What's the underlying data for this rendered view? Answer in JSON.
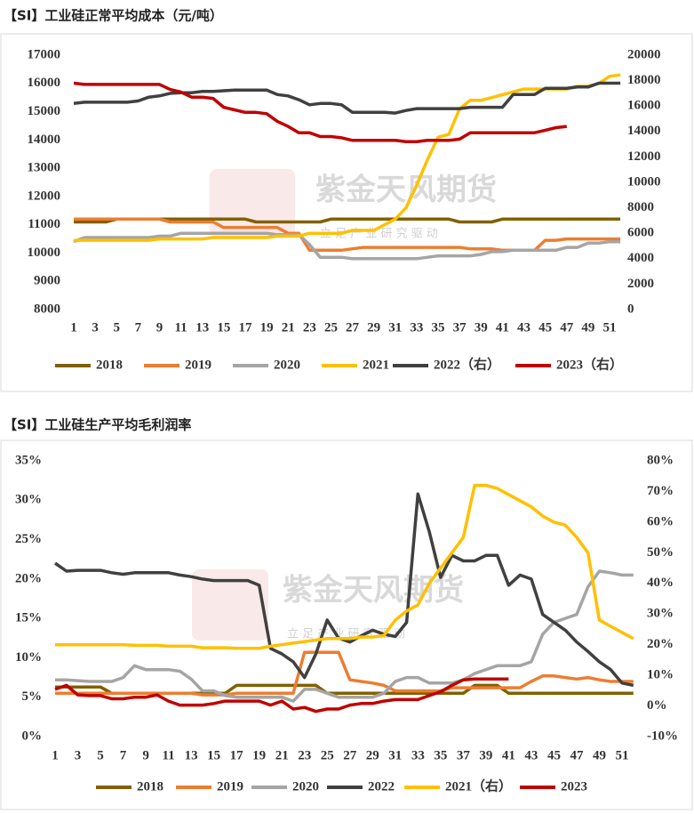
{
  "chart_data": [
    {
      "type": "line",
      "title": "【SI】工业硅正常平均成本（元/吨）",
      "watermark": "紫金天风期货",
      "watermark_sub": "立 足 产 业 研 究 驱 动",
      "categories": [
        1,
        null,
        3,
        null,
        5,
        null,
        7,
        null,
        9,
        null,
        11,
        null,
        13,
        null,
        15,
        null,
        17,
        null,
        19,
        null,
        21,
        null,
        23,
        null,
        25,
        null,
        27,
        null,
        29,
        null,
        31,
        null,
        33,
        null,
        35,
        null,
        37,
        null,
        39,
        null,
        41,
        null,
        43,
        null,
        45,
        null,
        47,
        null,
        49,
        null,
        51,
        null
      ],
      "ylim": [
        8000,
        17000
      ],
      "yticks": [
        8000,
        9000,
        10000,
        11000,
        12000,
        13000,
        14000,
        15000,
        16000,
        17000
      ],
      "y2lim": [
        0,
        20000
      ],
      "y2ticks": [
        0,
        2000,
        4000,
        6000,
        8000,
        10000,
        12000,
        14000,
        16000,
        18000,
        20000
      ],
      "grid": false,
      "legend": "bottom",
      "series": [
        {
          "name": "2018",
          "color": "#806000",
          "values": [
            11100,
            11100,
            11100,
            11100,
            11200,
            11200,
            11200,
            11200,
            11200,
            11200,
            11200,
            11200,
            11200,
            11200,
            11200,
            11200,
            11200,
            11100,
            11100,
            11100,
            11100,
            11100,
            11100,
            11100,
            11200,
            11200,
            11200,
            11200,
            11200,
            11200,
            11200,
            11200,
            11200,
            11200,
            11200,
            11200,
            11100,
            11100,
            11100,
            11100,
            11200,
            11200,
            11200,
            11200,
            11200,
            11200,
            11200,
            11200,
            11200,
            11200,
            11200,
            11200
          ]
        },
        {
          "name": "2019",
          "color": "#ed7d31",
          "values": [
            11200,
            11200,
            11200,
            11200,
            11200,
            11200,
            11200,
            11200,
            11200,
            11100,
            11100,
            11100,
            11100,
            11100,
            10900,
            10900,
            10900,
            10900,
            10900,
            10900,
            10700,
            10700,
            10100,
            10100,
            10100,
            10100,
            10150,
            10200,
            10200,
            10200,
            10200,
            10200,
            10200,
            10200,
            10200,
            10200,
            10200,
            10150,
            10150,
            10150,
            10100,
            10100,
            10100,
            10100,
            10450,
            10450,
            10500,
            10500,
            10500,
            10500,
            10500,
            10500
          ]
        },
        {
          "name": "2020",
          "color": "#a5a5a5",
          "values": [
            10400,
            10550,
            10550,
            10550,
            10550,
            10550,
            10550,
            10550,
            10600,
            10600,
            10700,
            10700,
            10700,
            10700,
            10700,
            10700,
            10700,
            10700,
            10700,
            10650,
            10650,
            10650,
            10300,
            9850,
            9850,
            9850,
            9800,
            9800,
            9800,
            9800,
            9800,
            9800,
            9800,
            9850,
            9900,
            9900,
            9900,
            9900,
            9950,
            10050,
            10050,
            10100,
            10100,
            10100,
            10100,
            10100,
            10200,
            10200,
            10350,
            10350,
            10400,
            10400
          ]
        },
        {
          "name": "2021",
          "color": "#ffc000",
          "values": [
            10450,
            10450,
            10450,
            10450,
            10450,
            10450,
            10450,
            10450,
            10500,
            10500,
            10500,
            10500,
            10500,
            10550,
            10550,
            10550,
            10550,
            10550,
            10550,
            10600,
            10600,
            10600,
            10700,
            10700,
            10700,
            10700,
            10800,
            10800,
            10800,
            11000,
            11200,
            11600,
            12400,
            13300,
            14100,
            14200,
            15100,
            15400,
            15400,
            15500,
            15600,
            15700,
            15800,
            15800,
            15800,
            15800,
            15800,
            15900,
            15900,
            16000,
            16250,
            16300
          ]
        },
        {
          "name": "2022（右）",
          "color": "#404040",
          "axis": "y2",
          "values": [
            16200,
            16300,
            16300,
            16300,
            16300,
            16300,
            16400,
            16700,
            16800,
            17000,
            17050,
            17050,
            17150,
            17150,
            17200,
            17250,
            17250,
            17250,
            17250,
            16900,
            16800,
            16500,
            16100,
            16200,
            16200,
            16100,
            15500,
            15500,
            15500,
            15500,
            15450,
            15650,
            15800,
            15800,
            15800,
            15800,
            15800,
            15900,
            15900,
            15900,
            15900,
            16900,
            16900,
            16900,
            17400,
            17400,
            17400,
            17500,
            17500,
            17800,
            17800,
            17800
          ]
        },
        {
          "name": "2023（右）",
          "color": "#c00000",
          "axis": "y2",
          "values": [
            17800,
            17700,
            17700,
            17700,
            17700,
            17700,
            17700,
            17700,
            17700,
            17300,
            17100,
            16700,
            16700,
            16600,
            15900,
            15700,
            15500,
            15500,
            15400,
            14800,
            14400,
            13900,
            13900,
            13600,
            13600,
            13500,
            13300,
            13300,
            13300,
            13300,
            13300,
            13200,
            13200,
            13300,
            13300,
            13300,
            13400,
            13900,
            13900,
            13900,
            13900,
            13900,
            13900,
            13900,
            14100,
            14300,
            14400,
            null,
            null,
            null,
            null,
            null
          ]
        }
      ]
    },
    {
      "type": "line",
      "title": "【SI】工业硅生产平均毛利润率",
      "watermark": "紫金天风期货",
      "watermark_sub": "立 足 产 业 研 究 驱 动",
      "categories": [
        1,
        null,
        3,
        null,
        5,
        null,
        7,
        null,
        9,
        null,
        11,
        null,
        13,
        null,
        15,
        null,
        17,
        null,
        19,
        null,
        21,
        null,
        23,
        null,
        25,
        null,
        27,
        null,
        29,
        null,
        31,
        null,
        33,
        null,
        35,
        null,
        37,
        null,
        39,
        null,
        41,
        null,
        43,
        null,
        45,
        null,
        47,
        null,
        49,
        null,
        51,
        null
      ],
      "ylim": [
        0,
        35
      ],
      "yticks": [
        {
          "value": 0,
          "label": "0%"
        },
        {
          "value": 5,
          "label": "5%"
        },
        {
          "value": 10,
          "label": "10%"
        },
        {
          "value": 15,
          "label": "15%"
        },
        {
          "value": 20,
          "label": "20%"
        },
        {
          "value": 25,
          "label": "25%"
        },
        {
          "value": 30,
          "label": "30%"
        },
        {
          "value": 35,
          "label": "35%"
        }
      ],
      "y2lim": [
        -10,
        80
      ],
      "y2ticks": [
        {
          "value": -10,
          "label": "-10%"
        },
        {
          "value": 0,
          "label": "0%"
        },
        {
          "value": 10,
          "label": "10%"
        },
        {
          "value": 20,
          "label": "20%"
        },
        {
          "value": 30,
          "label": "30%"
        },
        {
          "value": 40,
          "label": "40%"
        },
        {
          "value": 50,
          "label": "50%"
        },
        {
          "value": 60,
          "label": "60%"
        },
        {
          "value": 70,
          "label": "70%"
        },
        {
          "value": 80,
          "label": "80%"
        }
      ],
      "grid": false,
      "legend": "bottom",
      "series": [
        {
          "name": "2018",
          "color": "#806000",
          "values": [
            6.3,
            6.3,
            6.3,
            6.3,
            6.3,
            5.5,
            5.5,
            5.5,
            5.5,
            5.5,
            5.5,
            5.5,
            5.5,
            5.5,
            5.5,
            5.5,
            6.5,
            6.5,
            6.5,
            6.5,
            6.5,
            6.5,
            6.5,
            6.5,
            5.5,
            5.5,
            5.5,
            5.5,
            5.5,
            5.5,
            5.5,
            5.5,
            5.5,
            5.5,
            5.5,
            5.5,
            5.5,
            6.5,
            6.5,
            6.5,
            5.5,
            5.5,
            5.5,
            5.5,
            5.5,
            5.5,
            5.5,
            5.5,
            5.5,
            5.5,
            5.5,
            5.5
          ]
        },
        {
          "name": "2019",
          "color": "#ed7d31",
          "values": [
            5.5,
            5.5,
            5.5,
            5.5,
            5.5,
            5.5,
            5.5,
            5.5,
            5.5,
            5.5,
            5.5,
            5.5,
            5.5,
            5.3,
            5.3,
            5.3,
            5.5,
            5.5,
            5.5,
            5.5,
            5.5,
            5.5,
            10.7,
            10.7,
            10.7,
            10.7,
            7.2,
            7.0,
            6.8,
            6.5,
            5.8,
            5.8,
            5.8,
            5.8,
            5.8,
            6.2,
            6.2,
            6.2,
            6.2,
            6.2,
            6.2,
            6.2,
            7.0,
            7.7,
            7.7,
            7.5,
            7.3,
            7.5,
            7.2,
            7.0,
            7.0,
            7.0
          ]
        },
        {
          "name": "2020",
          "color": "#a5a5a5",
          "values": [
            7.2,
            7.2,
            7.1,
            7.0,
            7.0,
            7.0,
            7.5,
            9.0,
            8.5,
            8.5,
            8.5,
            8.3,
            7.3,
            5.8,
            5.8,
            5.2,
            5.0,
            5.0,
            5.0,
            5.0,
            5.0,
            4.5,
            6.0,
            6.0,
            5.5,
            5.0,
            5.0,
            5.0,
            5.0,
            5.5,
            7.0,
            7.5,
            7.5,
            6.8,
            6.8,
            6.8,
            7.2,
            8.0,
            8.5,
            9.0,
            9.0,
            9.0,
            9.5,
            13.0,
            14.5,
            15.0,
            15.5,
            19.0,
            21.0,
            20.8,
            20.5,
            20.5
          ]
        },
        {
          "name": "2022",
          "color": "#404040",
          "values": [
            22.0,
            21.0,
            21.1,
            21.1,
            21.1,
            20.8,
            20.6,
            20.8,
            20.8,
            20.8,
            20.8,
            20.5,
            20.3,
            20.0,
            19.8,
            19.8,
            19.8,
            19.8,
            19.2,
            11.2,
            10.5,
            9.5,
            7.5,
            10.5,
            14.8,
            12.5,
            12.0,
            12.8,
            13.5,
            13.0,
            12.7,
            14.5,
            30.8,
            26.0,
            20.2,
            23.0,
            22.3,
            22.3,
            23.0,
            23.0,
            19.2,
            20.5,
            20.0,
            15.5,
            14.5,
            13.5,
            12.0,
            10.8,
            9.5,
            8.5,
            6.8,
            6.5
          ]
        },
        {
          "name": "2021（右）",
          "color": "#ffc000",
          "axis": "y2",
          "values": [
            20,
            20,
            20,
            20,
            20,
            20,
            20,
            19.8,
            19.8,
            19.8,
            19.5,
            19.5,
            19.5,
            19,
            19,
            19,
            18.8,
            18.8,
            18.8,
            19.5,
            20,
            20.5,
            21,
            21.5,
            22,
            22,
            22,
            22.5,
            22.5,
            23,
            28,
            31,
            33,
            40,
            45,
            50,
            55,
            72,
            72,
            71,
            69,
            67,
            65,
            62,
            60,
            59,
            55,
            50,
            28,
            26,
            24,
            22
          ]
        },
        {
          "name": "2023",
          "color": "#c00000",
          "values": [
            6.0,
            6.5,
            5.3,
            5.2,
            5.2,
            4.8,
            4.8,
            5.0,
            5.0,
            5.3,
            4.5,
            4.0,
            4.0,
            4.0,
            4.2,
            4.5,
            4.5,
            4.5,
            4.5,
            4.0,
            4.5,
            3.5,
            3.7,
            3.2,
            3.5,
            3.5,
            4.0,
            4.2,
            4.2,
            4.5,
            4.7,
            4.7,
            4.7,
            5.2,
            5.7,
            6.5,
            7.2,
            7.3,
            7.3,
            7.3,
            7.3,
            null,
            null,
            null,
            null,
            null,
            null,
            null,
            null,
            null,
            null,
            null
          ]
        }
      ]
    }
  ]
}
